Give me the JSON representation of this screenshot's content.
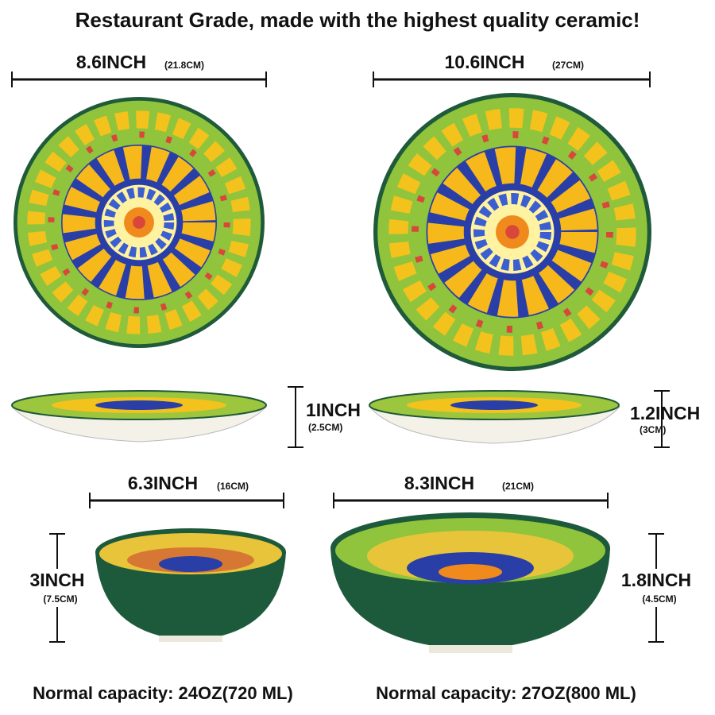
{
  "title": "Restaurant Grade, made with the highest quality ceramic!",
  "items": [
    {
      "width": "8.6INCH",
      "width_metric": "(21.8CM)",
      "height": "1INCH",
      "height_metric": "(2.5CM)"
    },
    {
      "width": "10.6INCH",
      "width_metric": "(27CM)",
      "height": "1.2INCH",
      "height_metric": "(3CM)"
    },
    {
      "width": "6.3INCH",
      "width_metric": "(16CM)",
      "height": "3INCH",
      "height_metric": "(7.5CM)",
      "capacity": "Normal capacity: 24OZ(720 ML)"
    },
    {
      "width": "8.3INCH",
      "width_metric": "(21CM)",
      "height": "1.8INCH",
      "height_metric": "(4.5CM)",
      "capacity": "Normal capacity: 27OZ(800 ML)"
    }
  ]
}
